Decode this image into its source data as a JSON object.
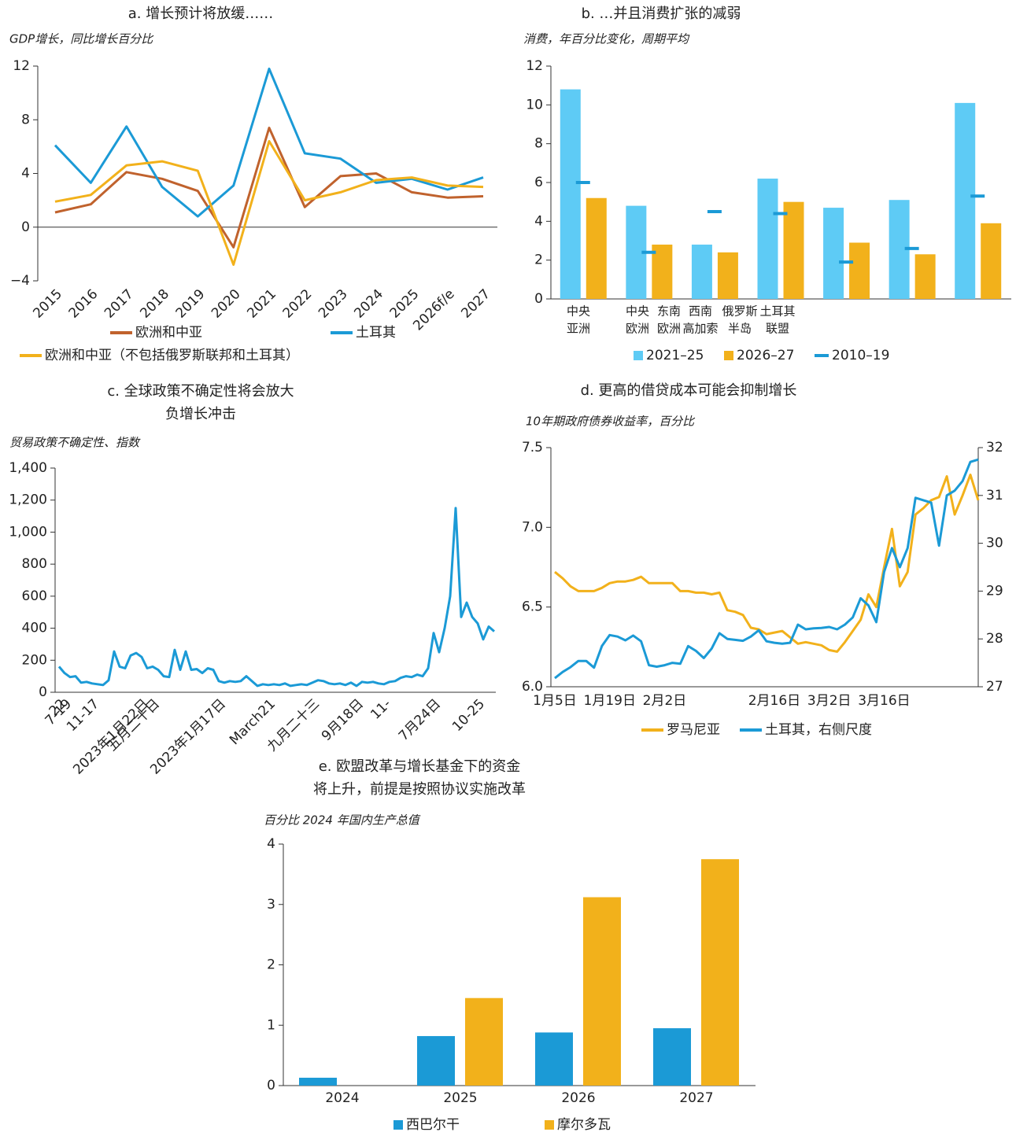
{
  "chart_data": [
    {
      "type": "line",
      "title": "a. 增长预计将放缓……",
      "subtitle": "GDP增长，同比增长百分比",
      "categories": [
        "2015",
        "2016",
        "2017",
        "2018",
        "2019",
        "2020",
        "2021",
        "2022",
        "2023",
        "2024",
        "2025",
        "2026f/e",
        "2027"
      ],
      "ylim": [
        -4,
        12
      ],
      "yticks": [
        {
          "value": -4,
          "label": "−4"
        },
        0,
        4,
        8,
        12
      ],
      "series": [
        {
          "name": "欧洲和中亚",
          "color": "#c0622d",
          "values": [
            1.1,
            1.7,
            4.1,
            3.6,
            2.7,
            -1.5,
            7.4,
            1.5,
            3.8,
            4.0,
            2.6,
            2.2,
            2.3
          ]
        },
        {
          "name": "土耳其",
          "color": "#1b9ad6",
          "values": [
            6.1,
            3.3,
            7.5,
            3.0,
            0.8,
            3.1,
            11.8,
            5.5,
            5.1,
            3.3,
            3.6,
            2.8,
            3.7
          ]
        },
        {
          "name": "欧洲和中亚（不包括俄罗斯联邦和土耳其）",
          "color": "#f2b11b",
          "values": [
            1.9,
            2.4,
            4.6,
            4.9,
            4.2,
            -2.8,
            6.4,
            2.0,
            2.6,
            3.5,
            3.7,
            3.1,
            3.0
          ]
        }
      ]
    },
    {
      "type": "bar",
      "title": "b. …并且消费扩张的减弱",
      "subtitle": "消费，年百分比变化，周期平均",
      "categories": [
        [
          "中央",
          "亚洲"
        ],
        [
          "中央",
          "欧洲"
        ],
        [
          "东南",
          "欧洲"
        ],
        [
          "西南",
          "高加索"
        ],
        [
          "俄罗斯",
          "半岛"
        ],
        [
          "土耳其",
          "联盟"
        ],
        null
      ],
      "ylim": [
        0,
        12
      ],
      "yticks": [
        0,
        2,
        4,
        6,
        8,
        10,
        12
      ],
      "series": [
        {
          "name": "2021–25",
          "color": "#5ecbf5",
          "values": [
            10.8,
            4.8,
            2.8,
            6.2,
            4.7,
            5.1,
            10.1
          ]
        },
        {
          "name": "2026–27",
          "color": "#f2b11b",
          "values": [
            5.2,
            2.8,
            2.4,
            5.0,
            2.9,
            2.3,
            3.9
          ]
        },
        {
          "name": "2010–19",
          "color": "#1b9ad6",
          "marker": "dash",
          "values": [
            6.0,
            2.4,
            4.5,
            4.4,
            1.9,
            2.6,
            5.3
          ]
        }
      ]
    },
    {
      "type": "line",
      "title": [
        "c. 全球政策不确定性将会放大",
        "负增长冲击"
      ],
      "subtitle": "贸易政策不确定性、指数",
      "categories": [
        "22",
        "7-19",
        null,
        null,
        null,
        null,
        "11-17",
        null,
        null,
        null,
        null,
        null,
        null,
        null,
        null,
        "2023年1月22日",
        null,
        "五月二十日",
        null,
        null,
        null,
        null,
        null,
        null,
        null,
        null,
        null,
        null,
        null,
        "2023年1月17日",
        null,
        null,
        null,
        null,
        null,
        null,
        null,
        null,
        "March21",
        null,
        null,
        null,
        null,
        null,
        null,
        null,
        "九月二十三",
        null,
        null,
        null,
        null,
        null,
        null,
        null,
        "9月18日",
        null,
        null,
        null,
        null,
        "11-",
        null,
        null,
        null,
        null,
        null,
        null,
        null,
        null,
        "7月24日",
        null,
        null,
        null,
        null,
        null,
        null,
        null,
        "10-25",
        null,
        null,
        null
      ],
      "ylim": [
        0,
        1400
      ],
      "yticks": [
        0,
        200,
        400,
        600,
        800,
        {
          "value": 1000,
          "label": "1,000"
        },
        {
          "value": 1200,
          "label": "1,200"
        },
        {
          "value": 1400,
          "label": "1,400"
        }
      ],
      "series": [
        {
          "color": "#1b9ad6",
          "values": [
            160,
            120,
            95,
            100,
            60,
            65,
            55,
            50,
            45,
            75,
            255,
            160,
            150,
            230,
            245,
            220,
            150,
            160,
            140,
            100,
            95,
            265,
            140,
            255,
            140,
            145,
            120,
            150,
            140,
            70,
            60,
            70,
            65,
            70,
            100,
            70,
            40,
            50,
            45,
            50,
            45,
            55,
            40,
            45,
            50,
            45,
            60,
            75,
            70,
            55,
            50,
            55,
            45,
            60,
            40,
            65,
            60,
            65,
            55,
            50,
            65,
            70,
            90,
            100,
            95,
            110,
            100,
            150,
            370,
            250,
            400,
            600,
            1150,
            470,
            560,
            470,
            430,
            330,
            410,
            380
          ]
        }
      ]
    },
    {
      "type": "line",
      "title": "d. 更高的借贷成本可能会抑制增长",
      "subtitle": "10年期政府债券收益率，百分比",
      "categories": [
        "1月5日",
        null,
        null,
        null,
        null,
        null,
        null,
        "1月19日",
        null,
        null,
        null,
        null,
        null,
        null,
        "2月2日",
        null,
        null,
        null,
        null,
        null,
        null,
        null,
        null,
        null,
        null,
        null,
        null,
        null,
        "2月16日",
        null,
        null,
        null,
        null,
        null,
        null,
        "3月2日",
        null,
        null,
        null,
        null,
        null,
        null,
        "3月16日",
        null,
        null,
        null,
        null,
        null,
        null,
        null,
        null,
        null,
        null,
        null,
        null
      ],
      "ylim": [
        6.0,
        7.5
      ],
      "yticks": [
        {
          "value": 6.0,
          "label": "6.0"
        },
        6.5,
        {
          "value": 7.0,
          "label": "7.0"
        },
        7.5
      ],
      "y2lim": [
        27,
        32
      ],
      "y2ticks": [
        27,
        28,
        29,
        30,
        31,
        32
      ],
      "series": [
        {
          "name": "罗马尼亚",
          "color": "#f2b11b",
          "values": [
            6.72,
            6.68,
            6.63,
            6.6,
            6.6,
            6.6,
            6.62,
            6.65,
            6.66,
            6.66,
            6.67,
            6.69,
            6.65,
            6.65,
            6.65,
            6.65,
            6.6,
            6.6,
            6.59,
            6.59,
            6.58,
            6.59,
            6.48,
            6.47,
            6.45,
            6.37,
            6.36,
            6.33,
            6.34,
            6.35,
            6.31,
            6.27,
            6.28,
            6.27,
            6.26,
            6.23,
            6.22,
            6.28,
            6.35,
            6.42,
            6.58,
            6.5,
            6.75,
            6.99,
            6.63,
            6.72,
            7.08,
            7.12,
            7.17,
            7.19,
            7.32,
            7.08,
            7.2,
            7.33,
            7.17
          ]
        },
        {
          "name": "土耳其，右侧尺度",
          "color": "#1b9ad6",
          "axis": "y2",
          "values": [
            27.18,
            27.31,
            27.41,
            27.54,
            27.54,
            27.4,
            27.85,
            28.08,
            28.05,
            27.97,
            28.07,
            27.95,
            27.45,
            27.42,
            27.45,
            27.5,
            27.48,
            27.85,
            27.75,
            27.6,
            27.8,
            28.12,
            28.0,
            27.98,
            27.96,
            28.05,
            28.18,
            27.95,
            27.92,
            27.9,
            27.92,
            28.3,
            28.2,
            28.22,
            28.23,
            28.25,
            28.2,
            28.3,
            28.45,
            28.85,
            28.7,
            28.35,
            29.4,
            29.9,
            29.5,
            29.9,
            30.95,
            30.9,
            30.85,
            29.95,
            31.0,
            31.1,
            31.3,
            31.7,
            31.75
          ]
        }
      ]
    },
    {
      "type": "bar",
      "title": [
        "e. 欧盟改革与增长基金下的资金",
        "将上升，前提是按照协议实施改革"
      ],
      "subtitle": "百分比 2024 年国内生产总值",
      "categories": [
        "2024",
        "2025",
        "2026",
        "2027"
      ],
      "ylim": [
        0,
        4
      ],
      "yticks": [
        0,
        1,
        2,
        3,
        4
      ],
      "series": [
        {
          "name": "西巴尔干",
          "color": "#1b9ad6",
          "values": [
            0.13,
            0.82,
            0.88,
            0.95
          ]
        },
        {
          "name": "摩尔多瓦",
          "color": "#f2b11b",
          "values": [
            null,
            1.45,
            3.12,
            3.75
          ]
        }
      ]
    }
  ]
}
